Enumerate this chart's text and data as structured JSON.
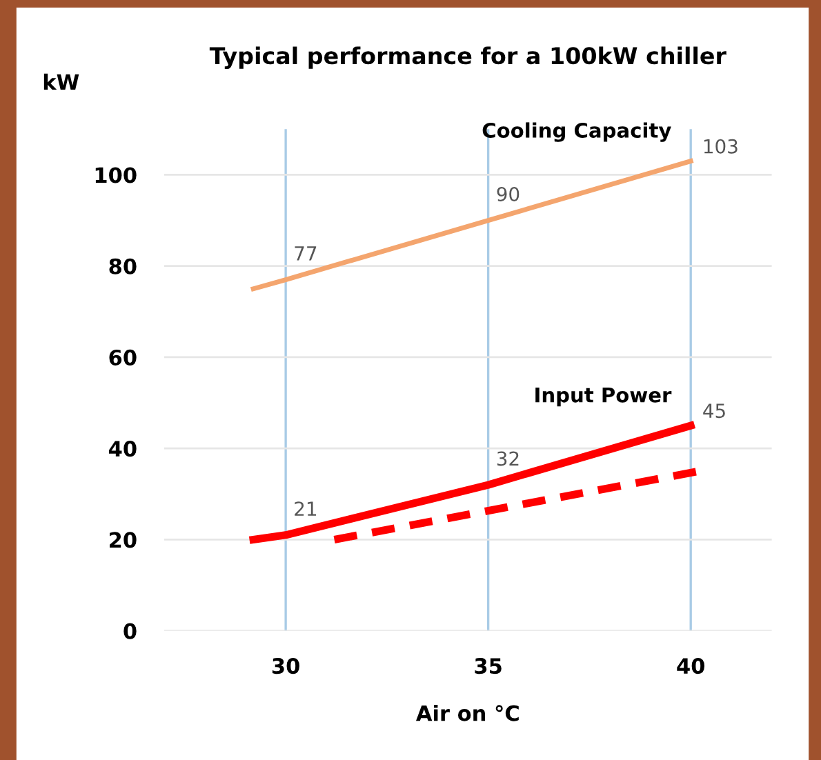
{
  "chart_data": {
    "type": "line",
    "title": "Typical performance for a 100kW chiller",
    "xlabel": "Air on °C",
    "ylabel": "kW",
    "xlim": [
      27,
      42
    ],
    "xticks": [
      30,
      35,
      40
    ],
    "ylim": [
      0,
      110
    ],
    "yticks": [
      0,
      20,
      40,
      60,
      80,
      100
    ],
    "grid": true,
    "marker": "none",
    "series": [
      {
        "name": "Cooling Capacity",
        "color": "#f4a56e",
        "x": [
          29.2,
          30,
          35,
          40
        ],
        "values": [
          75,
          77,
          90,
          103
        ],
        "value_labels": [
          null,
          "77",
          "90",
          "103"
        ],
        "line_style": "solid"
      },
      {
        "name": "Input Power",
        "color": "#ff0000",
        "x": [
          29.2,
          30,
          35,
          40
        ],
        "values": [
          20,
          21,
          32,
          45
        ],
        "value_labels": [
          null,
          "21",
          "32",
          "45"
        ],
        "line_style": "solid"
      },
      {
        "color": "#ff0000",
        "x": [
          31.2,
          40.2
        ],
        "values": [
          20,
          35
        ],
        "line_style": "dashed"
      }
    ]
  }
}
